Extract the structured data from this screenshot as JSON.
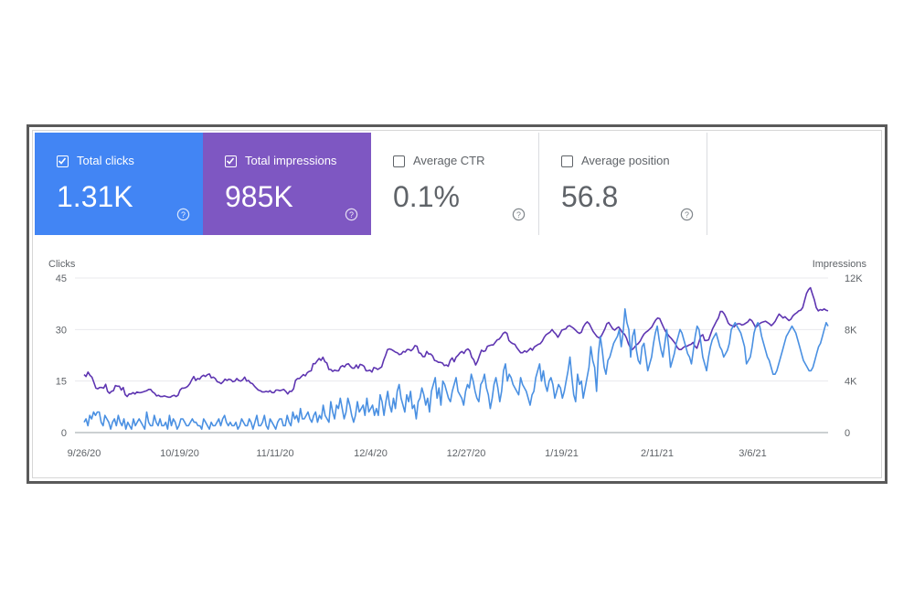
{
  "metrics": [
    {
      "key": "clicks",
      "label": "Total clicks",
      "value": "1.31K",
      "checked": true,
      "color": "#4285f4"
    },
    {
      "key": "impressions",
      "label": "Total impressions",
      "value": "985K",
      "checked": true,
      "color": "#7e57c2"
    },
    {
      "key": "ctr",
      "label": "Average CTR",
      "value": "0.1%",
      "checked": false
    },
    {
      "key": "position",
      "label": "Average position",
      "value": "56.8",
      "checked": false
    }
  ],
  "chart_data": {
    "type": "line",
    "left_axis": {
      "title": "Clicks",
      "ticks": [
        "45",
        "30",
        "15",
        "0"
      ],
      "ylim": [
        0,
        45
      ]
    },
    "right_axis": {
      "title": "Impressions",
      "ticks": [
        "12K",
        "8K",
        "4K",
        "0"
      ],
      "ylim": [
        0,
        12000
      ]
    },
    "x_labels": [
      "9/26/20",
      "10/19/20",
      "11/11/20",
      "12/4/20",
      "12/27/20",
      "1/19/21",
      "2/11/21",
      "3/6/21"
    ],
    "series": [
      {
        "name": "Impressions",
        "axis": "right",
        "color": "#5e35b1",
        "values": [
          4500,
          4350,
          4700,
          4450,
          4300,
          3900,
          3450,
          3400,
          3500,
          3500,
          3450,
          3750,
          3200,
          3050,
          3200,
          3250,
          3650,
          3600,
          3600,
          3300,
          3500,
          2950,
          2800,
          3000,
          3000,
          3100,
          3000,
          3150,
          3100,
          3100,
          3150,
          3200,
          3250,
          3350,
          3350,
          3150,
          3050,
          2850,
          2900,
          2800,
          2800,
          2850,
          2800,
          2750,
          2750,
          2850,
          2900,
          2800,
          2900,
          3300,
          3450,
          3450,
          3500,
          3600,
          3800,
          4100,
          4350,
          4050,
          4200,
          4150,
          4350,
          4450,
          4350,
          4500,
          4550,
          4250,
          4300,
          4200,
          3950,
          3900,
          3800,
          3950,
          4150,
          4050,
          4150,
          4100,
          3950,
          4000,
          4200,
          4050,
          4000,
          4100,
          4300,
          4000,
          4050,
          3850,
          3800,
          3600,
          3450,
          3300,
          3250,
          3150,
          3150,
          3200,
          3150,
          3250,
          3100,
          3100,
          3300,
          3300,
          3250,
          3300,
          3350,
          3200,
          3000,
          3200,
          3200,
          3400,
          4050,
          4200,
          4200,
          4350,
          4500,
          4400,
          4650,
          4750,
          4800,
          5350,
          5350,
          5550,
          5750,
          5600,
          5850,
          5500,
          5400,
          4900,
          4900,
          4750,
          4850,
          4800,
          4800,
          5100,
          5200,
          5100,
          5300,
          5350,
          5150,
          5000,
          5000,
          5250,
          5000,
          5300,
          5250,
          5150,
          4800,
          4800,
          4850,
          4700,
          5050,
          5000,
          4900,
          5000,
          5100,
          5600,
          6000,
          6450,
          6500,
          6450,
          6350,
          6250,
          6200,
          6050,
          6100,
          6300,
          6250,
          6450,
          6450,
          6350,
          6500,
          6750,
          6700,
          6200,
          6150,
          5900,
          5900,
          6300,
          6100,
          6100,
          5950,
          5600,
          5550,
          5450,
          5450,
          5400,
          5200,
          5250,
          5150,
          5600,
          5800,
          5500,
          5850,
          6000,
          6200,
          6300,
          6150,
          6400,
          6500,
          6350,
          5850,
          5650,
          5250,
          5550,
          6000,
          6400,
          6300,
          6350,
          6700,
          6750,
          6800,
          6800,
          7000,
          7200,
          7250,
          7450,
          7700,
          7800,
          7700,
          7150,
          7000,
          6900,
          6850,
          6600,
          6400,
          6200,
          6200,
          6350,
          6250,
          6400,
          6550,
          6400,
          6650,
          6750,
          6850,
          6900,
          7100,
          7400,
          7600,
          7700,
          7800,
          8000,
          7800,
          7650,
          7400,
          7650,
          7950,
          8000,
          8050,
          8250,
          8300,
          8200,
          8100,
          7950,
          7800,
          7700,
          7800,
          8200,
          8450,
          8600,
          8450,
          8150,
          7850,
          7650,
          7450,
          7350,
          7450,
          7750,
          8050,
          8450,
          8550,
          8300,
          8050,
          7950,
          8100,
          8200,
          8000,
          7750,
          7650,
          7350,
          6900,
          6600,
          6450,
          6600,
          6800,
          6900,
          7100,
          7400,
          7650,
          7800,
          7900,
          8050,
          8200,
          8500,
          8750,
          8900,
          8850,
          8500,
          8150,
          7850,
          7650,
          7450,
          7300,
          7100,
          6900,
          6600,
          6450,
          6450,
          6600,
          6700,
          6700,
          6800,
          6850,
          7000,
          6700,
          6550,
          7000,
          7500,
          7600,
          7150,
          7150,
          7200,
          7650,
          8050,
          8350,
          8650,
          8900,
          9400,
          9400,
          9200,
          8900,
          8500,
          8350,
          8300,
          8200,
          8400,
          8450,
          8450,
          8350,
          8400,
          8500,
          8600,
          8800,
          8700,
          8450,
          8150,
          8300,
          8450,
          8550,
          8600,
          8650,
          8550,
          8450,
          8300,
          8450,
          8650,
          8950,
          9200,
          9050,
          8900,
          9000,
          8850,
          8700,
          8800,
          9050,
          9200,
          9300,
          9450,
          9500,
          9700,
          10250,
          10800,
          11100,
          11250,
          10750,
          10300,
          9700,
          9450,
          9550,
          9500,
          9600,
          9500,
          9450
        ]
      },
      {
        "name": "Clicks",
        "axis": "left",
        "color": "#4a90e2",
        "values": [
          3,
          4,
          2,
          5,
          4,
          6,
          5,
          6,
          6,
          3,
          2,
          5,
          4,
          3,
          1,
          3,
          4,
          2,
          5,
          3,
          2,
          4,
          1,
          3,
          2,
          1,
          4,
          2,
          3,
          4,
          3,
          2,
          1,
          6,
          3,
          2,
          2,
          5,
          3,
          2,
          4,
          2,
          2,
          3,
          1,
          5,
          2,
          4,
          3,
          1,
          2,
          4,
          4,
          3,
          2,
          2,
          3,
          4,
          3,
          3,
          2,
          2,
          1,
          4,
          3,
          2,
          1,
          3,
          2,
          2,
          3,
          4,
          2,
          4,
          5,
          3,
          2,
          3,
          2,
          2,
          3,
          1,
          2,
          4,
          3,
          2,
          2,
          4,
          3,
          1,
          3,
          5,
          2,
          2,
          3,
          5,
          2,
          1,
          4,
          3,
          2,
          1,
          3,
          4,
          4,
          2,
          2,
          5,
          3,
          2,
          6,
          4,
          5,
          3,
          7,
          4,
          4,
          5,
          6,
          4,
          3,
          5,
          6,
          3,
          5,
          4,
          8,
          5,
          4,
          3,
          9,
          6,
          4,
          8,
          7,
          10,
          7,
          4,
          6,
          10,
          8,
          5,
          3,
          5,
          9,
          6,
          7,
          8,
          5,
          10,
          6,
          7,
          8,
          5,
          7,
          5,
          11,
          9,
          5,
          9,
          12,
          8,
          6,
          10,
          7,
          12,
          14,
          10,
          8,
          6,
          11,
          9,
          12,
          7,
          8,
          4,
          9,
          10,
          13,
          11,
          8,
          10,
          6,
          12,
          14,
          16,
          10,
          13,
          8,
          15,
          14,
          12,
          10,
          9,
          12,
          14,
          16,
          12,
          11,
          10,
          8,
          12,
          14,
          13,
          17,
          15,
          12,
          10,
          9,
          14,
          15,
          17,
          13,
          11,
          7,
          10,
          14,
          16,
          13,
          9,
          12,
          18,
          20,
          15,
          17,
          16,
          14,
          13,
          12,
          11,
          16,
          14,
          13,
          12,
          10,
          8,
          11,
          12,
          16,
          18,
          20,
          15,
          18,
          14,
          12,
          15,
          16,
          14,
          10,
          12,
          14,
          13,
          10,
          12,
          15,
          18,
          22,
          16,
          11,
          9,
          17,
          14,
          15,
          10,
          13,
          16,
          19,
          25,
          21,
          19,
          12,
          23,
          28,
          24,
          19,
          17,
          21,
          22,
          24,
          26,
          27,
          28,
          30,
          25,
          29,
          36,
          32,
          30,
          22,
          28,
          30,
          24,
          21,
          20,
          25,
          26,
          22,
          18,
          20,
          22,
          26,
          29,
          31,
          27,
          24,
          22,
          26,
          30,
          25,
          19,
          21,
          23,
          26,
          28,
          30,
          29,
          27,
          25,
          23,
          22,
          20,
          24,
          28,
          31,
          30,
          26,
          22,
          20,
          18,
          22,
          25,
          27,
          28,
          29,
          27,
          25,
          24,
          22,
          23,
          24,
          26,
          30,
          31,
          32,
          31,
          30,
          29,
          27,
          25,
          20,
          21,
          22,
          25,
          29,
          31,
          32,
          31,
          28,
          26,
          24,
          22,
          21,
          19,
          17,
          17,
          18,
          20,
          22,
          24,
          26,
          28,
          29,
          30,
          31,
          30,
          29,
          27,
          25,
          23,
          21,
          20,
          19,
          18,
          18,
          19,
          21,
          23,
          25,
          26,
          28,
          30,
          32,
          31
        ]
      }
    ]
  }
}
